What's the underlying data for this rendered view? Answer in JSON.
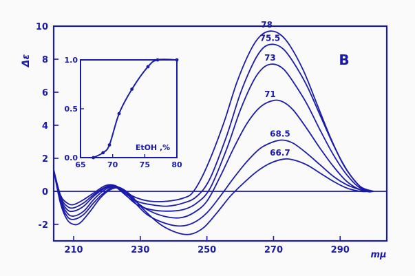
{
  "chart_data": [
    {
      "type": "line",
      "panel_label": "B",
      "ylabel": "Δε",
      "xlabel": "mμ",
      "xlim": [
        204,
        304
      ],
      "ylim": [
        -3,
        10
      ],
      "x_ticks": [
        210,
        230,
        250,
        270,
        290
      ],
      "y_ticks": [
        -2,
        0,
        2,
        4,
        6,
        8,
        10
      ],
      "zero_line": true,
      "grid": false,
      "series": [
        {
          "name": "78",
          "points": [
            [
              204,
              1.3
            ],
            [
              206,
              -0.2
            ],
            [
              208,
              -0.7
            ],
            [
              210,
              -0.8
            ],
            [
              213,
              -0.5
            ],
            [
              216,
              -0.1
            ],
            [
              219,
              0.3
            ],
            [
              221,
              0.4
            ],
            [
              223,
              0.3
            ],
            [
              226,
              -0.1
            ],
            [
              229,
              -0.4
            ],
            [
              233,
              -0.6
            ],
            [
              238,
              -0.6
            ],
            [
              243,
              -0.4
            ],
            [
              246,
              0.0
            ],
            [
              250,
              1.5
            ],
            [
              255,
              4.1
            ],
            [
              259,
              6.6
            ],
            [
              263,
              8.5
            ],
            [
              266,
              9.4
            ],
            [
              269,
              9.7
            ],
            [
              272,
              9.5
            ],
            [
              275,
              8.8
            ],
            [
              279,
              7.3
            ],
            [
              283,
              5.3
            ],
            [
              287,
              3.3
            ],
            [
              291,
              1.6
            ],
            [
              295,
              0.5
            ],
            [
              298,
              0.0
            ],
            [
              300,
              0.0
            ]
          ]
        },
        {
          "name": "75.5",
          "points": [
            [
              204,
              1.3
            ],
            [
              206,
              -0.3
            ],
            [
              208,
              -0.9
            ],
            [
              210,
              -1.0
            ],
            [
              213,
              -0.7
            ],
            [
              216,
              -0.2
            ],
            [
              219,
              0.2
            ],
            [
              221,
              0.35
            ],
            [
              223,
              0.25
            ],
            [
              226,
              -0.2
            ],
            [
              229,
              -0.6
            ],
            [
              233,
              -0.8
            ],
            [
              238,
              -0.9
            ],
            [
              243,
              -0.7
            ],
            [
              247,
              -0.3
            ],
            [
              251,
              0.8
            ],
            [
              256,
              3.4
            ],
            [
              260,
              5.9
            ],
            [
              264,
              7.8
            ],
            [
              267,
              8.7
            ],
            [
              270,
              8.9
            ],
            [
              273,
              8.6
            ],
            [
              276,
              7.8
            ],
            [
              280,
              6.4
            ],
            [
              284,
              4.6
            ],
            [
              288,
              2.8
            ],
            [
              292,
              1.3
            ],
            [
              296,
              0.3
            ],
            [
              300,
              0.0
            ]
          ]
        },
        {
          "name": "73",
          "points": [
            [
              204,
              1.3
            ],
            [
              206,
              -0.4
            ],
            [
              208,
              -1.1
            ],
            [
              210,
              -1.2
            ],
            [
              213,
              -0.9
            ],
            [
              216,
              -0.3
            ],
            [
              219,
              0.15
            ],
            [
              221,
              0.3
            ],
            [
              223,
              0.2
            ],
            [
              226,
              -0.3
            ],
            [
              229,
              -0.8
            ],
            [
              233,
              -1.1
            ],
            [
              238,
              -1.2
            ],
            [
              243,
              -1.1
            ],
            [
              247,
              -0.7
            ],
            [
              251,
              0.2
            ],
            [
              256,
              2.6
            ],
            [
              260,
              4.9
            ],
            [
              264,
              6.7
            ],
            [
              267,
              7.5
            ],
            [
              270,
              7.7
            ],
            [
              273,
              7.4
            ],
            [
              276,
              6.6
            ],
            [
              280,
              5.3
            ],
            [
              284,
              3.7
            ],
            [
              288,
              2.2
            ],
            [
              292,
              1.0
            ],
            [
              296,
              0.2
            ],
            [
              300,
              0.0
            ]
          ]
        },
        {
          "name": "71",
          "points": [
            [
              204,
              1.3
            ],
            [
              206,
              -0.5
            ],
            [
              208,
              -1.3
            ],
            [
              210,
              -1.5
            ],
            [
              213,
              -1.2
            ],
            [
              216,
              -0.5
            ],
            [
              219,
              0.05
            ],
            [
              222,
              0.3
            ],
            [
              225,
              0.1
            ],
            [
              228,
              -0.5
            ],
            [
              232,
              -1.1
            ],
            [
              237,
              -1.5
            ],
            [
              242,
              -1.6
            ],
            [
              246,
              -1.3
            ],
            [
              250,
              -0.6
            ],
            [
              254,
              0.9
            ],
            [
              258,
              2.6
            ],
            [
              262,
              4.1
            ],
            [
              266,
              5.1
            ],
            [
              270,
              5.5
            ],
            [
              273,
              5.4
            ],
            [
              276,
              4.9
            ],
            [
              280,
              3.8
            ],
            [
              284,
              2.6
            ],
            [
              288,
              1.5
            ],
            [
              292,
              0.6
            ],
            [
              296,
              0.1
            ],
            [
              300,
              0.0
            ]
          ]
        },
        {
          "name": "68.5",
          "points": [
            [
              204,
              1.3
            ],
            [
              206,
              -0.6
            ],
            [
              208,
              -1.5
            ],
            [
              210,
              -1.7
            ],
            [
              213,
              -1.4
            ],
            [
              216,
              -0.7
            ],
            [
              219,
              -0.1
            ],
            [
              222,
              0.25
            ],
            [
              225,
              0.1
            ],
            [
              228,
              -0.6
            ],
            [
              232,
              -1.4
            ],
            [
              237,
              -1.9
            ],
            [
              242,
              -2.1
            ],
            [
              246,
              -1.9
            ],
            [
              250,
              -1.3
            ],
            [
              254,
              -0.3
            ],
            [
              258,
              0.8
            ],
            [
              262,
              1.8
            ],
            [
              266,
              2.6
            ],
            [
              270,
              3.0
            ],
            [
              273,
              3.1
            ],
            [
              276,
              2.9
            ],
            [
              280,
              2.3
            ],
            [
              284,
              1.6
            ],
            [
              288,
              0.9
            ],
            [
              292,
              0.4
            ],
            [
              296,
              0.1
            ],
            [
              300,
              0.0
            ]
          ]
        },
        {
          "name": "66.7",
          "points": [
            [
              204,
              1.3
            ],
            [
              206,
              -0.7
            ],
            [
              208,
              -1.7
            ],
            [
              210,
              -2.0
            ],
            [
              212,
              -1.9
            ],
            [
              215,
              -1.2
            ],
            [
              218,
              -0.4
            ],
            [
              221,
              0.1
            ],
            [
              224,
              0.2
            ],
            [
              227,
              -0.2
            ],
            [
              231,
              -1.1
            ],
            [
              236,
              -2.0
            ],
            [
              241,
              -2.5
            ],
            [
              245,
              -2.6
            ],
            [
              249,
              -2.2
            ],
            [
              253,
              -1.3
            ],
            [
              257,
              -0.3
            ],
            [
              261,
              0.5
            ],
            [
              265,
              1.2
            ],
            [
              269,
              1.7
            ],
            [
              273,
              1.95
            ],
            [
              276,
              1.9
            ],
            [
              280,
              1.6
            ],
            [
              284,
              1.1
            ],
            [
              288,
              0.6
            ],
            [
              292,
              0.2
            ],
            [
              296,
              0.0
            ],
            [
              300,
              0.0
            ]
          ]
        }
      ]
    },
    {
      "type": "line",
      "panel": "inset",
      "xlabel": "EtOH ,%",
      "xlim": [
        65,
        80
      ],
      "ylim": [
        0,
        1
      ],
      "x_ticks": [
        65,
        70,
        75,
        80
      ],
      "y_ticks": [
        "0.0",
        "0.5",
        "1.0"
      ],
      "series": [
        {
          "points": [
            [
              67,
              0.0
            ],
            [
              68.5,
              0.05
            ],
            [
              69.5,
              0.13
            ],
            [
              71,
              0.45
            ],
            [
              73,
              0.7
            ],
            [
              75.5,
              0.93
            ],
            [
              77,
              1.0
            ],
            [
              80,
              1.0
            ]
          ]
        }
      ]
    }
  ]
}
